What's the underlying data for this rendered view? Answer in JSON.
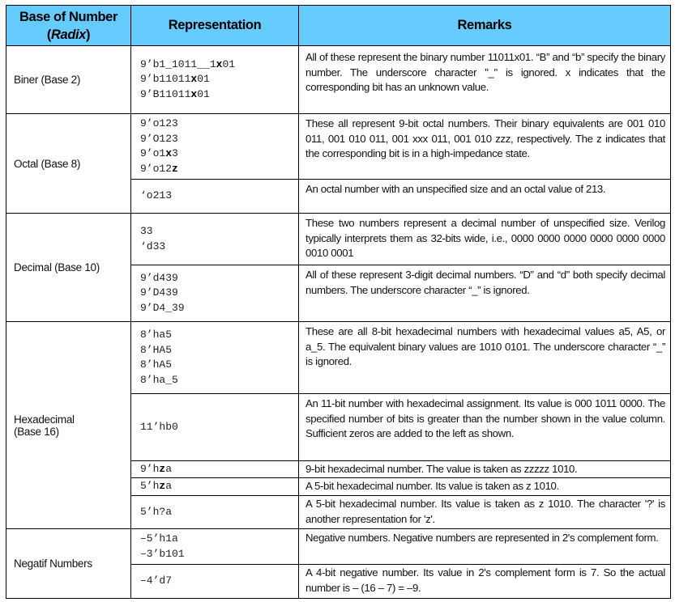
{
  "header": {
    "col1_line1": "Base of Number",
    "col1_radix": "Radix",
    "col2": "Representation",
    "col3": "Remarks",
    "color": "#66ccff"
  },
  "groups": [
    {
      "base": "Biner (Base 2)",
      "rows": [
        {
          "rep": [
            [
              {
                "t": "9’b1_1011__1"
              },
              {
                "t": "x",
                "b": true
              },
              {
                "t": "01"
              }
            ],
            [
              {
                "t": "9’b11011"
              },
              {
                "t": "x",
                "b": true
              },
              {
                "t": "01"
              }
            ],
            [
              {
                "t": "9’B11011"
              },
              {
                "t": "x",
                "b": true
              },
              {
                "t": "01"
              }
            ]
          ],
          "remark": "All of these represent the binary number 11011x01. “B” and “b” specify the binary number. The underscore character \"_\" is ignored. x indicates that the corresponding bit has an unknown value."
        }
      ]
    },
    {
      "base": "Octal (Base 8)",
      "rows": [
        {
          "rep": [
            [
              {
                "t": "9’o123"
              }
            ],
            [
              {
                "t": "9’O123"
              }
            ],
            [
              {
                "t": "9’o1"
              },
              {
                "t": "x",
                "b": true
              },
              {
                "t": "3"
              }
            ],
            [
              {
                "t": "9’o12"
              },
              {
                "t": "z",
                "b": true
              }
            ]
          ],
          "remark": "These all represent 9-bit octal numbers. Their binary equivalents are 001 010 011, 001 010 011, 001 xxx 011, 001 010 zzz, respectively. The z indicates that the corresponding bit is in a high-impedance state."
        },
        {
          "rep": [
            [
              {
                "t": "‘o213"
              }
            ]
          ],
          "remark": "An octal number with an unspecified size and an octal value of 213."
        }
      ]
    },
    {
      "base": "Decimal (Base 10)",
      "rows": [
        {
          "rep": [
            [
              {
                "t": "33"
              }
            ],
            [
              {
                "t": "‘d33"
              }
            ]
          ],
          "remark": "These two numbers represent a decimal number of unspecified size. Verilog typically interprets them as 32-bits wide, i.e., 0000 0000 0000 0000 0000 0000 0010 0001"
        },
        {
          "rep": [
            [
              {
                "t": "9’d439"
              }
            ],
            [
              {
                "t": "9’D439"
              }
            ],
            [
              {
                "t": "9’D4_39"
              }
            ]
          ],
          "remark": "All of these represent 3-digit decimal numbers. “D” and “d” both specify decimal numbers. The underscore character “_” is ignored."
        }
      ]
    },
    {
      "base": "Hexadecimal (Base 16)",
      "rows": [
        {
          "rep": [
            [
              {
                "t": "8’ha5"
              }
            ],
            [
              {
                "t": "8’HA5"
              }
            ],
            [
              {
                "t": "8’hA5"
              }
            ],
            [
              {
                "t": "8’ha_5"
              }
            ]
          ],
          "remark": "These are all 8-bit hexadecimal numbers with hexadecimal values a5, A5, or a_5. The equivalent binary values are 1010 0101. The underscore character “_” is ignored."
        },
        {
          "rep": [
            [
              {
                "t": "11’hb0"
              }
            ]
          ],
          "remark": "An 11-bit number with hexadecimal assignment. Its value is 000 1011 0000. The specified number of bits is greater than the number shown in the value column. Sufficient zeros are added to the left as shown."
        },
        {
          "rep": [
            [
              {
                "t": "9’h"
              },
              {
                "t": "z",
                "b": true
              },
              {
                "t": "a"
              }
            ]
          ],
          "remark": "9-bit hexadecimal number. The value is taken as zzzzz 1010."
        },
        {
          "rep": [
            [
              {
                "t": "5’h"
              },
              {
                "t": "z",
                "b": true
              },
              {
                "t": "a"
              }
            ]
          ],
          "remark": "A 5-bit hexadecimal number. Its value is taken as z 1010."
        },
        {
          "rep": [
            [
              {
                "t": "5’h?a"
              }
            ]
          ],
          "remark": "A 5-bit hexadecimal number. Its value is taken as z 1010. The character '?' is another representation for 'z'."
        }
      ]
    },
    {
      "base": "Negatif Numbers",
      "rows": [
        {
          "rep": [
            [
              {
                "t": "–5’h1a"
              }
            ],
            [
              {
                "t": "–3’b101"
              }
            ]
          ],
          "remark": "Negative numbers. Negative numbers are represented in 2's complement form."
        },
        {
          "rep": [
            [
              {
                "t": "–4’d7"
              }
            ]
          ],
          "remark": "A 4-bit negative number. Its value in 2's complement form is 7. So the actual number is – (16 – 7) = –9."
        }
      ]
    }
  ]
}
